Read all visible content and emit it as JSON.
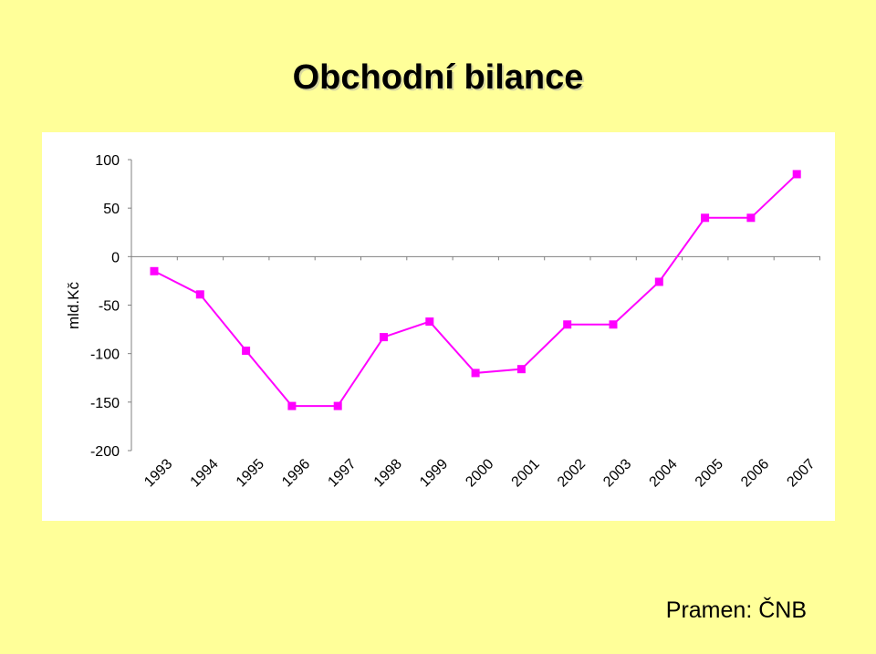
{
  "title": "Obchodní bilance",
  "source": "Pramen: ČNB",
  "colors": {
    "background": "#FFFF99",
    "series": "#FF00FF",
    "plot": "#FFFFFF"
  },
  "chart_data": {
    "type": "line",
    "title": "Obchodní bilance",
    "ylabel": "mld.Kč",
    "xlabel": "",
    "ylim": [
      -200,
      100
    ],
    "yticks": [
      100,
      50,
      0,
      -50,
      -100,
      -150,
      -200
    ],
    "grid": false,
    "legend": "none",
    "marker": "square",
    "categories": [
      "1993",
      "1994",
      "1995",
      "1996",
      "1997",
      "1998",
      "1999",
      "2000",
      "2001",
      "2002",
      "2003",
      "2004",
      "2005",
      "2006",
      "2007"
    ],
    "series": [
      {
        "values": [
          -15,
          -39,
          -97,
          -154,
          -154,
          -83,
          -67,
          -120,
          -116,
          -70,
          -70,
          -26,
          40,
          40,
          85
        ]
      }
    ]
  }
}
